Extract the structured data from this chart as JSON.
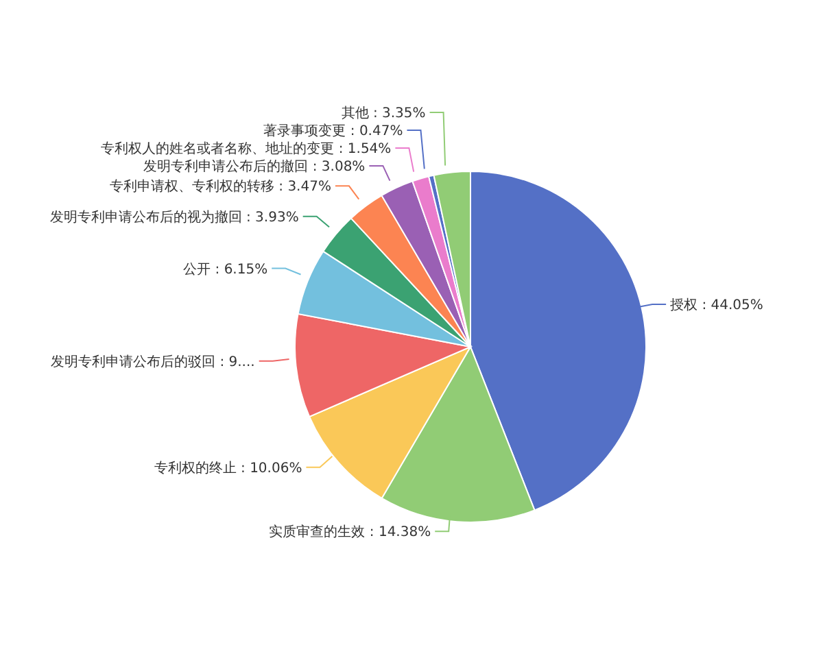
{
  "chart_data": {
    "type": "pie",
    "categories": [
      "授权",
      "实质审查的生效",
      "专利权的终止",
      "发明专利申请公布后的驳回",
      "公开",
      "发明专利申请公布后的视为撤回",
      "专利申请权、专利权的转移",
      "发明专利申请公布后的撤回",
      "专利权人的姓名或者名称、地址的变更",
      "著录事项变更",
      "其他"
    ],
    "values": [
      44.05,
      14.38,
      10.06,
      9.52,
      6.15,
      3.93,
      3.47,
      3.08,
      1.54,
      0.47,
      3.35
    ],
    "value_labels": [
      "44.05%",
      "14.38%",
      "10.06%",
      "9....",
      "6.15%",
      "3.93%",
      "3.47%",
      "3.08%",
      "1.54%",
      "0.47%",
      "3.35%"
    ],
    "colors": [
      "#5470c6",
      "#91cc75",
      "#fac858",
      "#ee6666",
      "#73c0de",
      "#3ba272",
      "#fc8452",
      "#9a60b4",
      "#ea7ccc",
      "#5470c6",
      "#91cc75"
    ],
    "legend": false
  }
}
